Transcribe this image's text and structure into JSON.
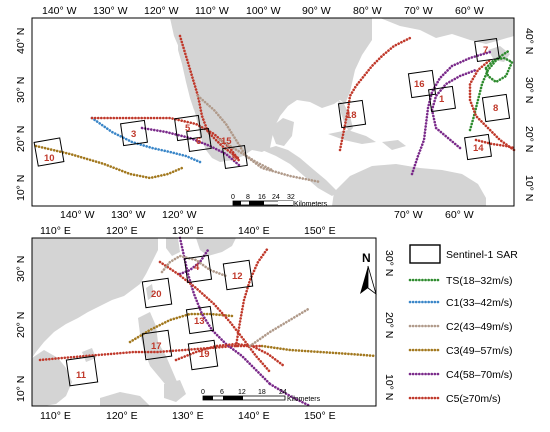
{
  "maps": {
    "top": {
      "lon_labels": [
        "140° W",
        "130° W",
        "120° W",
        "110° W",
        "100° W",
        "90° W",
        "80° W",
        "70° W",
        "60° W"
      ],
      "lat_labels_left": [
        "40° N",
        "30° N",
        "20° N",
        "10° N"
      ],
      "lat_labels_right": [
        "40° N",
        "30° N",
        "20° N",
        "10° N"
      ],
      "box_labels": [
        "10",
        "3",
        "5",
        "6",
        "15",
        "9",
        "18",
        "16",
        "1",
        "7",
        "8",
        "14"
      ],
      "scalebar": {
        "ticks": [
          "0",
          "8",
          "16",
          "24",
          "32"
        ],
        "unit": "Kilometers"
      }
    },
    "bottom": {
      "lon_labels": [
        "110° E",
        "120° E",
        "130° E",
        "140° E",
        "150° E"
      ],
      "lon_labels_bottom": [
        "110° E",
        "120° E",
        "130° E",
        "140° E",
        "150° E"
      ],
      "lat_labels_left": [
        "30° N",
        "20° N",
        "10° N"
      ],
      "lat_labels_right": [
        "30° N",
        "20° N",
        "10° N"
      ],
      "box_labels": [
        "4",
        "20",
        "12",
        "13",
        "17",
        "19",
        "11"
      ],
      "scalebar": {
        "ticks": [
          "0",
          "6",
          "12",
          "18",
          "24"
        ],
        "unit": "Kilometers"
      },
      "north_label": "N"
    }
  },
  "legend": {
    "box_label": "Sentinel-1 SAR",
    "items": [
      {
        "label": "TS(18–32m/s)",
        "color": "#2e8b2e"
      },
      {
        "label": "C1(33–42m/s)",
        "color": "#3a86c8"
      },
      {
        "label": "C2(43–49m/s)",
        "color": "#b09a8a"
      },
      {
        "label": "C3(49–57m/s)",
        "color": "#a2781e"
      },
      {
        "label": "C4(58–70m/s)",
        "color": "#7a2a8a"
      },
      {
        "label": "C5(≥70m/s)",
        "color": "#c0392b"
      }
    ]
  },
  "colors": {
    "land": "#d4d4d4",
    "ocean": "#ffffff",
    "frame": "#000000"
  }
}
